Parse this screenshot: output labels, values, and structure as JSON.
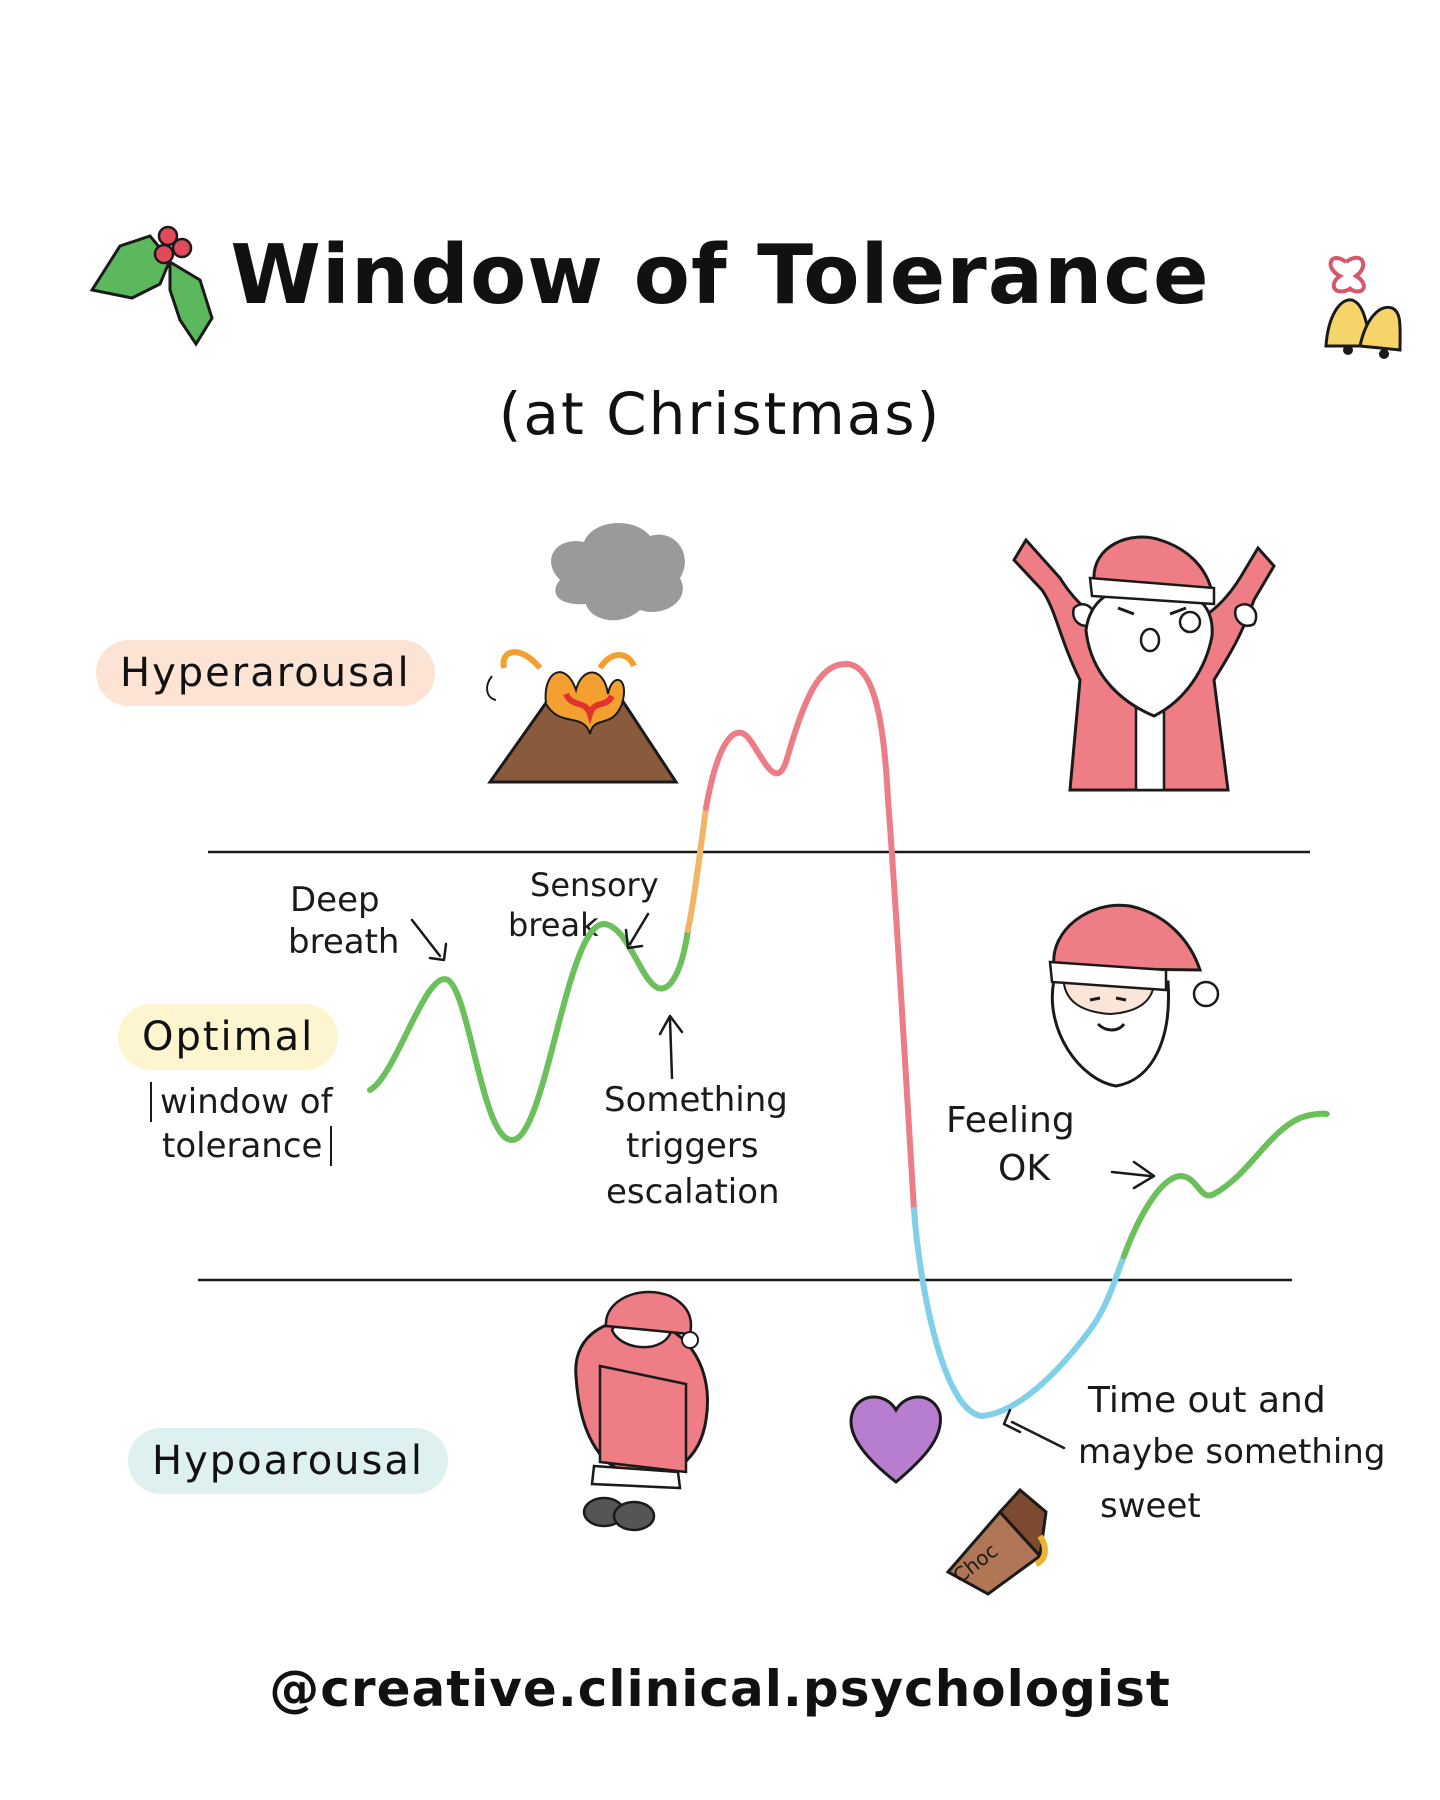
{
  "title": "Window of Tolerance",
  "subtitle": "(at Christmas)",
  "zones": {
    "hyper": "Hyperarousal",
    "optimal": "Optimal",
    "optimal_note_1": "window of",
    "optimal_note_2": "tolerance",
    "hypo": "Hypoarousal"
  },
  "annotations": {
    "deep_breath_1": "Deep",
    "deep_breath_2": "breath",
    "sensory_break_1": "Sensory",
    "sensory_break_2": "break",
    "trigger_1": "Something",
    "trigger_2": "triggers",
    "trigger_3": "escalation",
    "feeling_ok_1": "Feeling",
    "feeling_ok_2": "OK",
    "timeout_1": "Time out and",
    "timeout_2": "maybe something",
    "timeout_3": "sweet",
    "choc": "Choc"
  },
  "credit": "@creative.clinical.psychologist",
  "colors": {
    "hyper_badge": "#fde3d3",
    "optimal_badge": "#fdf5cf",
    "hypo_badge": "#dff0f0",
    "curve_green": "#6cc05c",
    "curve_orange": "#f1b565",
    "curve_red": "#ec7d86",
    "curve_blue": "#7fd0e8",
    "santa_red": "#ef7d85",
    "heart": "#b77ecf"
  },
  "icons": [
    "holly-icon",
    "bells-icon",
    "volcano-icon",
    "angry-santa-icon",
    "calm-santa-icon",
    "curled-santa-icon",
    "heart-icon",
    "chocolate-icon"
  ]
}
